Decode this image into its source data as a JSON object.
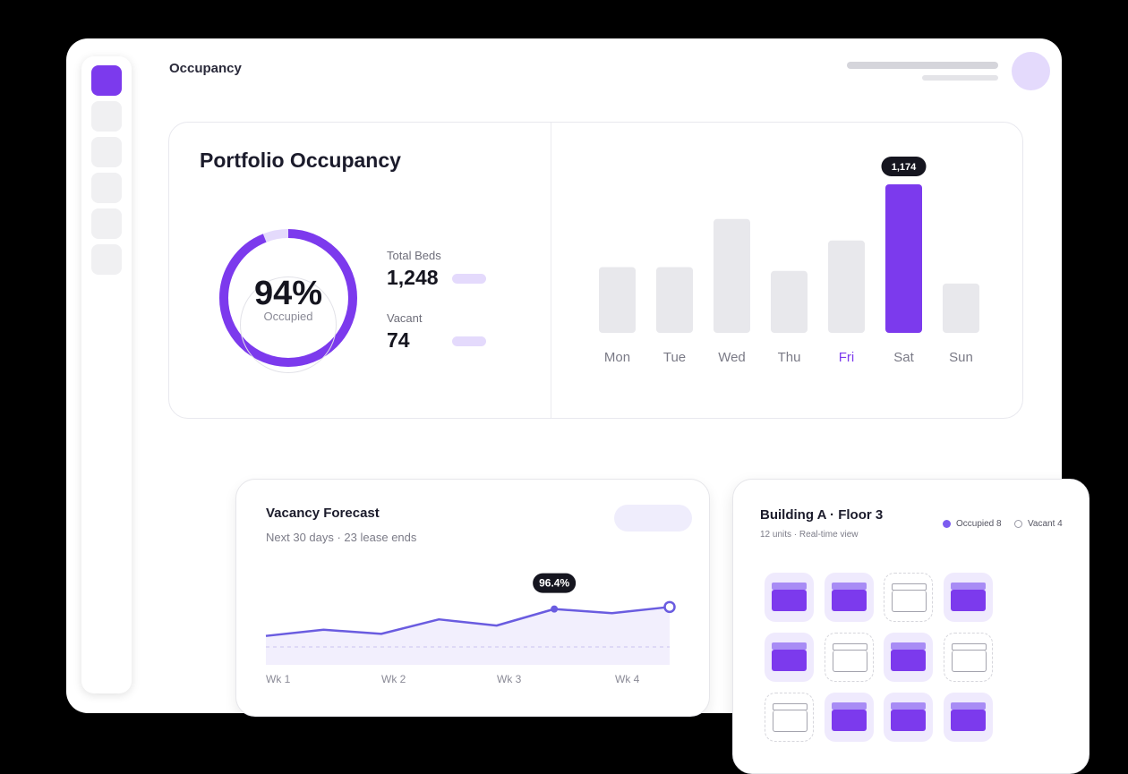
{
  "header": {
    "title": "Occupancy"
  },
  "sidebar": {
    "items": [
      {
        "name": "nav-item-1",
        "active": true
      },
      {
        "name": "nav-item-2",
        "active": false
      },
      {
        "name": "nav-item-3",
        "active": false
      },
      {
        "name": "nav-item-4",
        "active": false
      },
      {
        "name": "nav-item-5",
        "active": false
      },
      {
        "name": "nav-item-6",
        "active": false
      }
    ]
  },
  "portfolio": {
    "title": "Portfolio Occupancy",
    "donut_value": "94%",
    "donut_label": "Occupied",
    "occupied_fraction": 0.94,
    "total_beds_label": "Total Beds",
    "total_beds_value": "1,248",
    "vacant_label": "Vacant",
    "vacant_value": "74"
  },
  "colors": {
    "accent": "#7c3aed",
    "accent_light": "#e4dafc",
    "bar_idle": "#e8e8ec",
    "line": "#6a5ce0",
    "text_dark": "#15151f",
    "text_muted": "#8a8a96"
  },
  "chart_data": [
    {
      "type": "bar",
      "categories": [
        "Mon",
        "Tue",
        "Wed",
        "Thu",
        "Fri",
        "Sat",
        "Sun"
      ],
      "values": [
        520,
        520,
        900,
        490,
        730,
        1174,
        390
      ],
      "highlight_category": "Sat",
      "selected_label_category": "Fri",
      "callout": "1,174"
    },
    {
      "type": "area",
      "title": "Vacancy Forecast",
      "subtitle": "Next 30 days · 23 lease ends",
      "x": [
        0,
        1,
        2,
        3,
        4,
        5,
        6,
        7
      ],
      "y": [
        95.1,
        95.4,
        95.2,
        95.9,
        95.6,
        96.4,
        96.2,
        96.5
      ],
      "tick_labels": [
        "Wk 1",
        "Wk 2",
        "Wk 3",
        "Wk 4"
      ],
      "callout": "96.4%",
      "callout_index": 5
    }
  ],
  "floor": {
    "title": "Building A · Floor 3",
    "subtitle": "12 units · Real-time view",
    "legend_occupied": "Occupied 8",
    "legend_vacant": "Vacant 4",
    "units": [
      "occupied",
      "occupied",
      "vacant",
      "occupied",
      "occupied",
      "vacant",
      "occupied",
      "vacant",
      "vacant",
      "occupied",
      "occupied",
      "occupied"
    ]
  }
}
